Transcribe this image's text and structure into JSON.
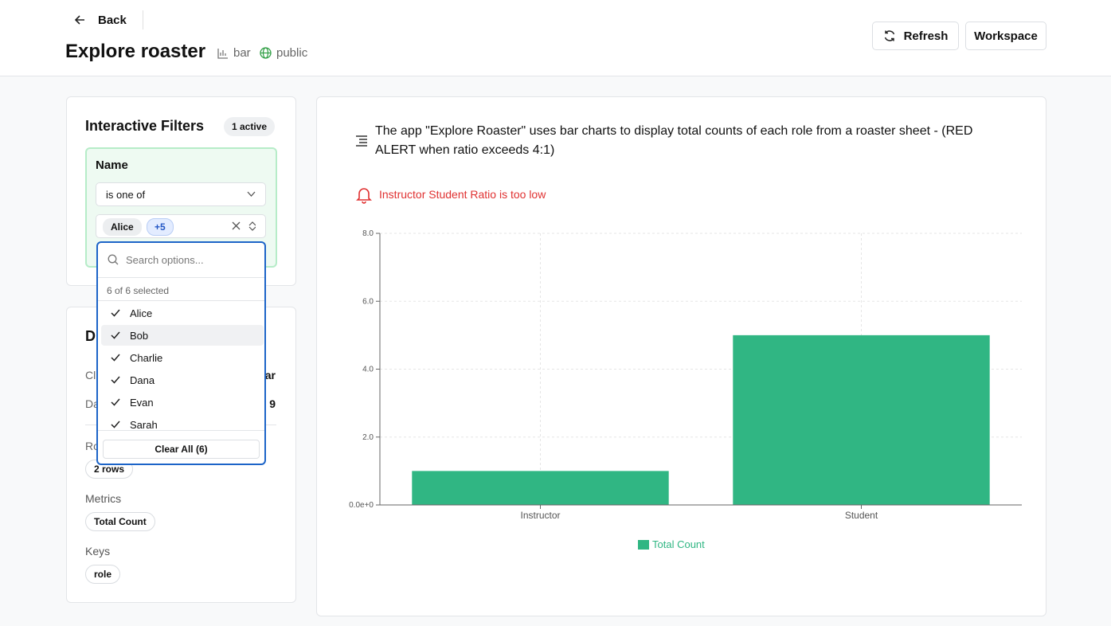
{
  "header": {
    "back": "Back",
    "title": "Explore roaster",
    "type_badge": "bar",
    "visibility": "public",
    "refresh": "Refresh",
    "workspace": "Workspace"
  },
  "filters": {
    "title": "Interactive Filters",
    "active": "1 active",
    "field": "Name",
    "operator": "is one of",
    "chip": "Alice",
    "more": "+5",
    "search_placeholder": "Search options...",
    "selected_count": "6 of 6 selected",
    "options": [
      "Alice",
      "Bob",
      "Charlie",
      "Dana",
      "Evan",
      "Sarah"
    ],
    "clear": "Clear All (6)"
  },
  "details": {
    "title": "D",
    "rows": [
      [
        "Cl",
        "ar"
      ],
      [
        "Da",
        "9"
      ]
    ],
    "rows_label": "Ro",
    "rows_value": "2 rows",
    "metrics_label": "Metrics",
    "metric": "Total Count",
    "keys_label": "Keys",
    "key": "role"
  },
  "chart_panel": {
    "description": "The app \"Explore Roaster\" uses bar charts to display total counts of each role from a roaster sheet - (RED ALERT when ratio exceeds 4:1)",
    "alert": "Instructor Student Ratio is too low"
  },
  "chart_data": {
    "type": "bar",
    "categories": [
      "Instructor",
      "Student"
    ],
    "series": [
      {
        "name": "Total Count",
        "color": "#30b683",
        "values": [
          1,
          5
        ]
      }
    ],
    "ylim": [
      0,
      8
    ],
    "yticks": [
      {
        "value": 0,
        "label": "0.0e+0"
      },
      {
        "value": 2,
        "label": "2.0"
      },
      {
        "value": 4,
        "label": "4.0"
      },
      {
        "value": 6,
        "label": "6.0"
      },
      {
        "value": 8,
        "label": "8.0"
      }
    ],
    "grid": true,
    "legend": "bottom"
  }
}
